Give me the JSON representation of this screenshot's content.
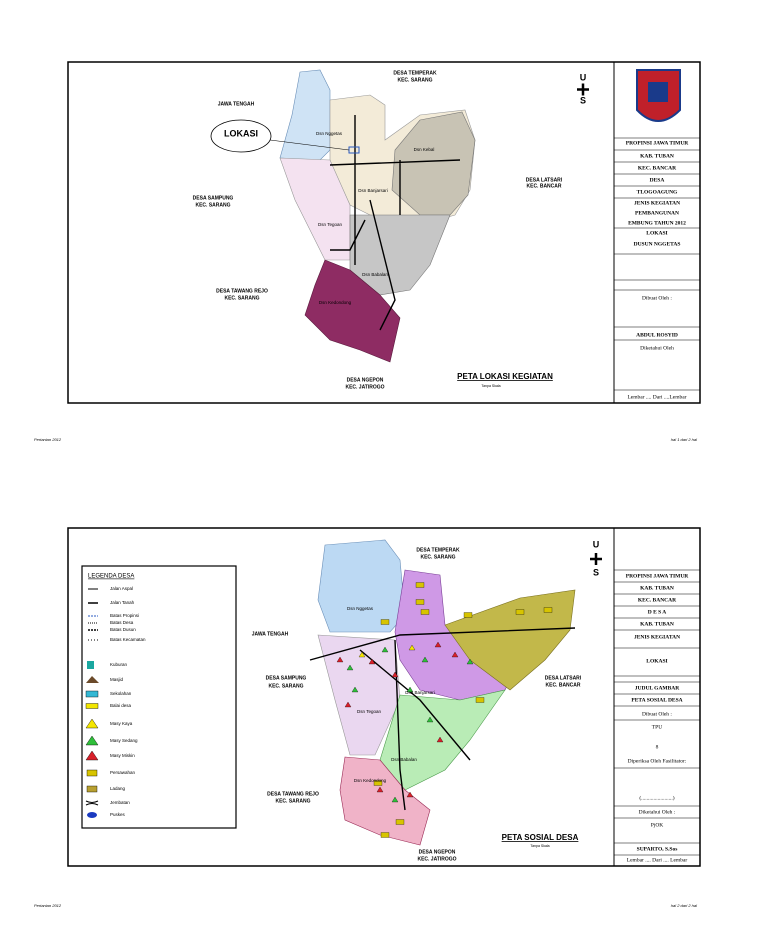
{
  "sheets": [
    {
      "map_labels": [
        "DESA TEMPERAK",
        "KEC. SARANG",
        "JAWA TENGAH",
        "LOKASI",
        "Dsn Nggetas",
        "Dsn Kebal",
        "DESA LATSARI",
        "KEC. BANCAR",
        "DESA SAMPUNG",
        "KEC. SARANG",
        "Dsn Banjarsari",
        "Dsn Tegoan",
        "Dsn Babalan",
        "DESA TAWANG REJO",
        "KEC. SARANG",
        "Dsn Kedondong",
        "DESA NGEPON",
        "KEC. JATIROGO"
      ],
      "map_title": "PETA LOKASI KEGIATAN",
      "scale_note": "Tanpa Skala",
      "compass": [
        "U",
        "S"
      ],
      "title_block": [
        "PROPINSI JAWA TIMUR",
        "KAB. TUBAN",
        "KEC. BANCAR",
        "DESA",
        "TLOGOAGUNG",
        "JENIS KEGIATAN",
        "PEMBANGUNAN",
        "EMBUNG TAHUN 2012",
        "LOKASI",
        "DUSUN NGGETAS",
        "Dibuat Oleh :",
        "ABDUL ROSYID",
        "Diketahui Oleh",
        "Lembar .... Dari ....Lembar"
      ],
      "footer": {
        "left": "Pertanian 2012",
        "right": "hal 1 dari 2 hal"
      }
    },
    {
      "legend": {
        "title": "LEGENDA DESA",
        "items": [
          "Jalan Aspal",
          "Jalan Tanah",
          "Batas Propinsi",
          "Batas Desa",
          "Batas Dusun",
          "Batas Kecamatan",
          "Kuburan",
          "Masjid",
          "Sekolahan",
          "Balai desa",
          "Masy Kaya",
          "Masy Sedang",
          "Masy Miskin",
          "Persawahan",
          "Ladang",
          "Jembatan",
          "Puskes"
        ]
      },
      "map_labels": [
        "DESA TEMPERAK",
        "KEC. SARANG",
        "JAWA TENGAH",
        "Dsn Nggetas",
        "DESA LATSARI",
        "KEC. BANCAR",
        "DESA SAMPUNG",
        "KEC. SARANG",
        "Dsn Banjarsari",
        "Dsn Tegoan",
        "Dsn Babalan",
        "DESA TAWANG REJO",
        "KEC. SARANG",
        "Dsn Kedondong",
        "DESA NGEPON",
        "KEC. JATIROGO"
      ],
      "map_title": "PETA SOSIAL DESA",
      "scale_note": "Tanpa Skala",
      "compass": [
        "U",
        "S"
      ],
      "title_block": [
        "PROPINSI JAWA TIMUR",
        "KAB. TUBAN",
        "KEC. BANCAR",
        "D E S A",
        "KAB. TUBAN",
        "JENIS KEGIATAN",
        "LOKASI",
        "JUDUL GAMBAR",
        "PETA SOSIAL DESA",
        "Dibuat Oleh :",
        "TPU",
        "8",
        "Diperiksa Oleh Fasilitator:",
        "(.......................)",
        "Diketahui Oleh :",
        "PjOK",
        "SUPARTO, S.Sos",
        "Lembar .... Dari .... Lembar"
      ],
      "footer": {
        "left": "Pertanian 2012",
        "right": "hal 2 dari 2 hal"
      }
    }
  ]
}
